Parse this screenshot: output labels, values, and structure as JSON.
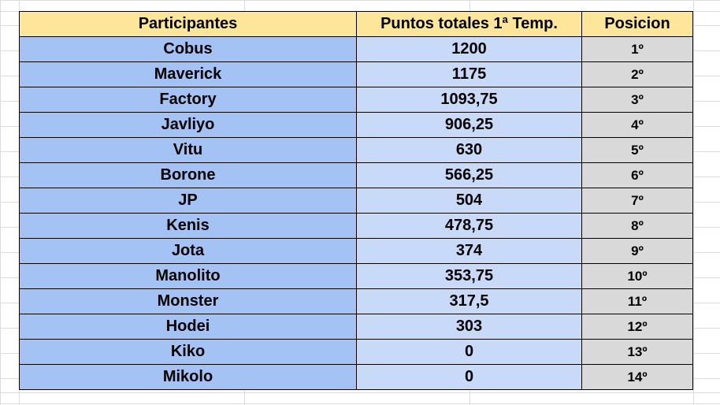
{
  "table": {
    "headers": {
      "name": "Participantes",
      "points": "Puntos totales 1ª Temp.",
      "position": "Posicion"
    },
    "rows": [
      {
        "name": "Cobus",
        "points": "1200",
        "position": "1º"
      },
      {
        "name": "Maverick",
        "points": "1175",
        "position": "2º"
      },
      {
        "name": "Factory",
        "points": "1093,75",
        "position": "3º"
      },
      {
        "name": "Javliyo",
        "points": "906,25",
        "position": "4º"
      },
      {
        "name": "Vitu",
        "points": "630",
        "position": "5º"
      },
      {
        "name": "Borone",
        "points": "566,25",
        "position": "6º"
      },
      {
        "name": "JP",
        "points": "504",
        "position": "7º"
      },
      {
        "name": "Kenis",
        "points": "478,75",
        "position": "8º"
      },
      {
        "name": "Jota",
        "points": "374",
        "position": "9º"
      },
      {
        "name": "Manolito",
        "points": "353,75",
        "position": "10º"
      },
      {
        "name": "Monster",
        "points": "317,5",
        "position": "11º"
      },
      {
        "name": "Hodei",
        "points": "303",
        "position": "12º"
      },
      {
        "name": "Kiko",
        "points": "0",
        "position": "13º"
      },
      {
        "name": "Mikolo",
        "points": "0",
        "position": "14º"
      }
    ]
  },
  "colors": {
    "header_bg": "#fde599",
    "name_bg": "#a4c2f4",
    "points_bg": "#c9daf8",
    "position_bg": "#d9d9d9",
    "gridline": "#dadce0"
  }
}
